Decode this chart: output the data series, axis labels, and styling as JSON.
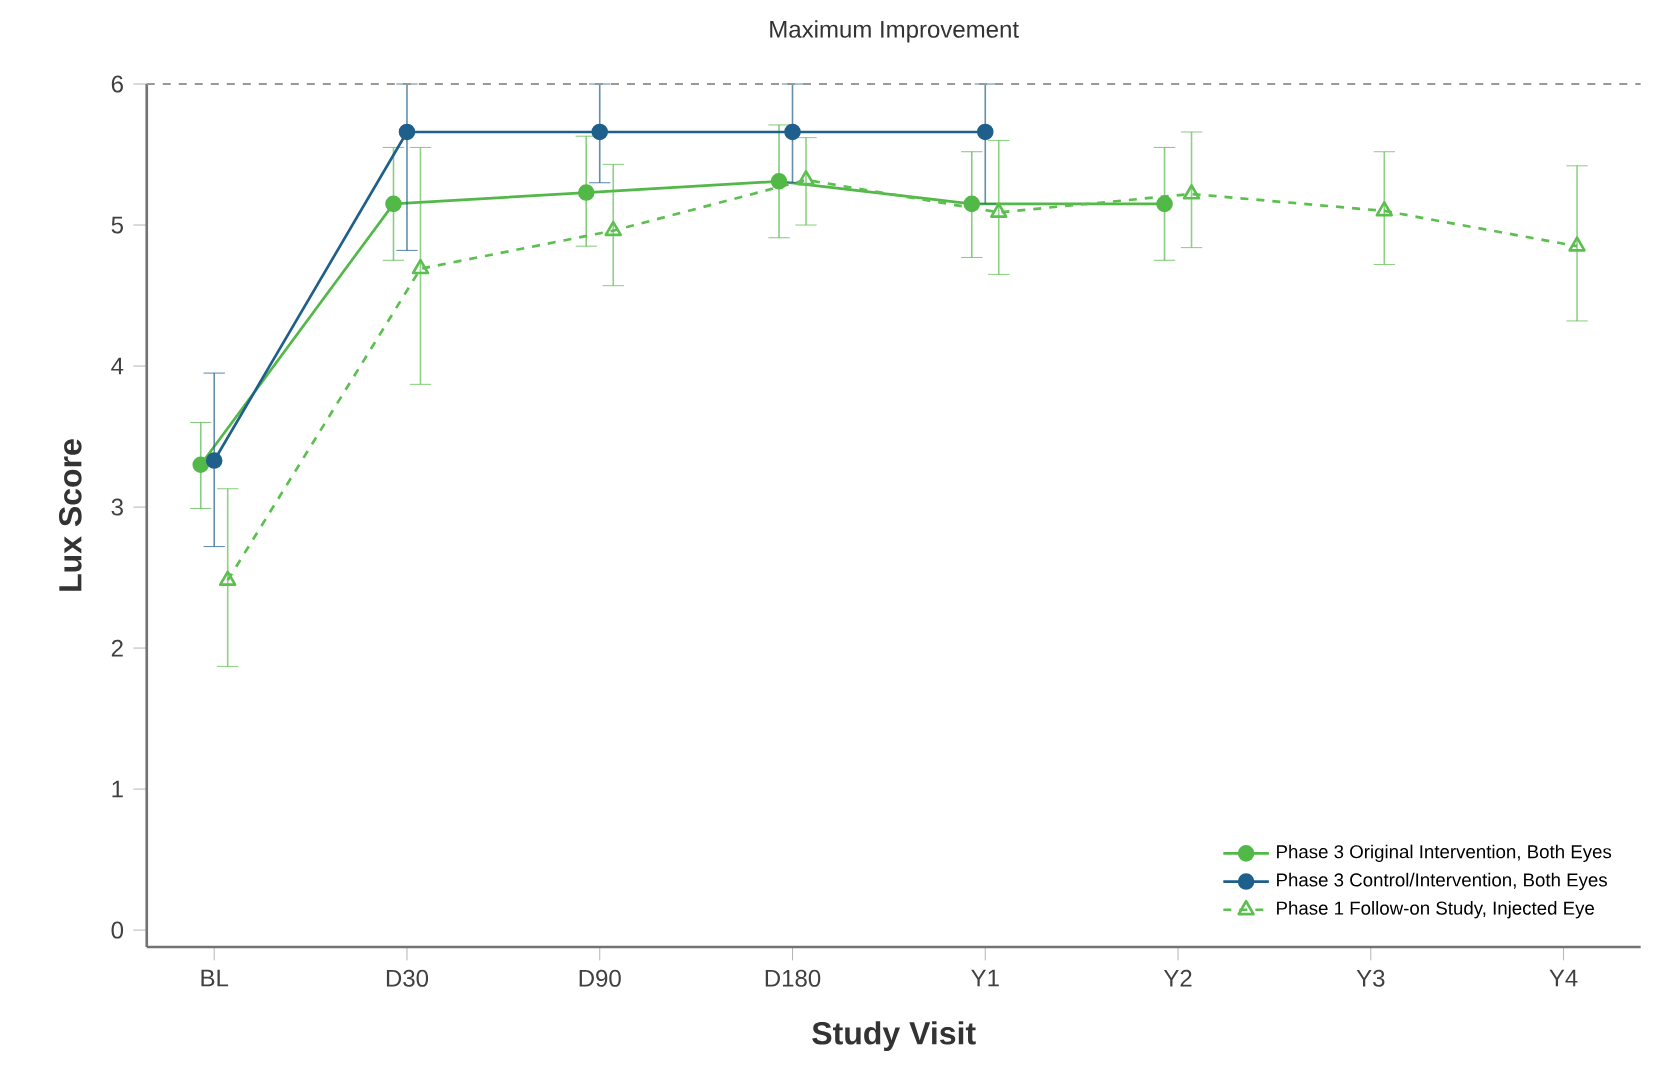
{
  "chart_data": {
    "type": "line",
    "title": "Maximum Improvement",
    "xlabel": "Study Visit",
    "ylabel": "Lux Score",
    "categories": [
      "BL",
      "D30",
      "D90",
      "D180",
      "Y1",
      "Y2",
      "Y3",
      "Y4"
    ],
    "ylim": [
      -0.12,
      6
    ],
    "yticks": [
      0,
      1,
      2,
      3,
      4,
      5,
      6
    ],
    "ref_lines": [
      {
        "axis": "y",
        "value": 6,
        "color": "#999999",
        "line_style": "dashed"
      }
    ],
    "legend": "bottom right",
    "series": [
      {
        "name": "Phase 3 Original Intervention, Both Eyes",
        "color": "#52b848",
        "marker": "circle",
        "line_style": "solid",
        "values": [
          3.3,
          5.15,
          5.23,
          5.31,
          5.15,
          5.15,
          null,
          null
        ],
        "errors": [
          [
            2.99,
            3.6
          ],
          [
            4.75,
            5.55
          ],
          [
            4.85,
            5.63
          ],
          [
            4.91,
            5.71
          ],
          [
            4.77,
            5.52
          ],
          [
            4.75,
            5.55
          ],
          null,
          null
        ]
      },
      {
        "name": "Phase 3 Control/Intervention, Both Eyes",
        "color": "#1f5f8b",
        "marker": "circle",
        "line_style": "solid",
        "values": [
          3.33,
          5.66,
          5.66,
          5.66,
          5.66,
          null,
          null,
          null
        ],
        "errors": [
          [
            2.72,
            3.95
          ],
          [
            4.82,
            6
          ],
          [
            5.3,
            6
          ],
          [
            5.3,
            6
          ],
          [
            5.15,
            6
          ],
          null,
          null,
          null
        ]
      },
      {
        "name": "Phase 1 Follow-on Study, Injected Eye",
        "color": "#5cbf4f",
        "marker": "triangle",
        "line_style": "dashed",
        "values": [
          2.48,
          4.69,
          4.96,
          5.32,
          5.09,
          5.22,
          5.1,
          4.85
        ],
        "errors": [
          [
            1.87,
            3.13
          ],
          [
            3.87,
            5.55
          ],
          [
            4.57,
            5.43
          ],
          [
            5.0,
            5.62
          ],
          [
            4.65,
            5.6
          ],
          [
            4.84,
            5.66
          ],
          [
            4.72,
            5.52
          ],
          [
            4.32,
            5.42
          ]
        ]
      }
    ]
  }
}
